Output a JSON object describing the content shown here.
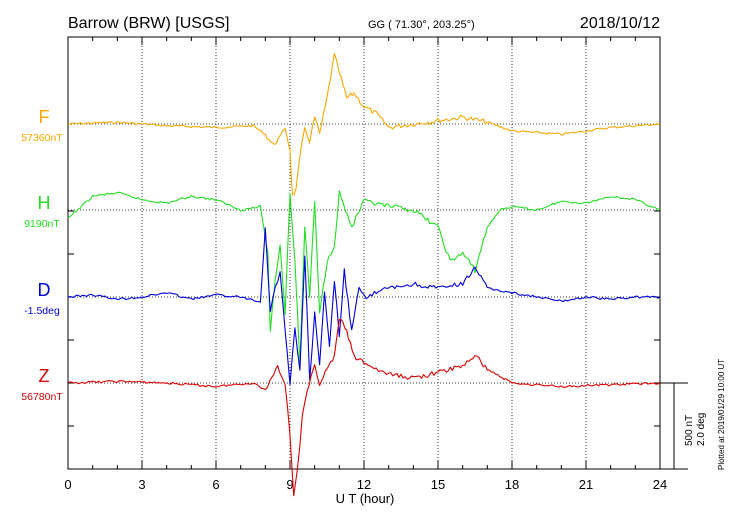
{
  "header": {
    "station": "Barrow (BRW)  [USGS]",
    "coords": "GG ( 71.30°, 203.25°)",
    "date": "2018/10/12"
  },
  "scale_note": {
    "nt": "500 nT",
    "deg": "2.0 deg"
  },
  "plotted_note": "Plotted at 2019/01/29 10:00 UT",
  "chart_data": {
    "type": "line",
    "title": "Barrow (BRW)  [USGS]",
    "xlabel": "U T (hour)",
    "xlim": [
      0,
      24
    ],
    "xticks": [
      "0",
      "3",
      "6",
      "9",
      "12",
      "15",
      "18",
      "21",
      "24"
    ],
    "grid": true,
    "scale_bar": {
      "nT": 500,
      "deg": 2.0
    },
    "series": [
      {
        "name": "F",
        "baseline_label": "57360nT",
        "color": "#f5a800",
        "units": "nT",
        "baseline": 57360,
        "x": [
          0,
          2,
          4,
          6,
          7.5,
          8.0,
          8.3,
          8.6,
          8.8,
          9.0,
          9.1,
          9.25,
          9.4,
          9.6,
          9.8,
          10.0,
          10.2,
          10.5,
          10.8,
          11.0,
          11.3,
          11.6,
          12.0,
          12.5,
          13.0,
          14.0,
          15.0,
          16.0,
          17.0,
          18.0,
          20.0,
          22.0,
          24.0
        ],
        "values": [
          0,
          10,
          -10,
          -20,
          -10,
          -60,
          -120,
          -80,
          -20,
          -150,
          -420,
          -380,
          -200,
          -20,
          -100,
          40,
          -60,
          150,
          400,
          300,
          150,
          180,
          100,
          60,
          -20,
          0,
          20,
          40,
          10,
          -40,
          -60,
          -20,
          0
        ]
      },
      {
        "name": "H",
        "baseline_label": "9190nT",
        "color": "#22dd22",
        "units": "nT",
        "baseline": 9190,
        "x": [
          0,
          1,
          2,
          3,
          4,
          5,
          6,
          7,
          7.8,
          8.1,
          8.2,
          8.4,
          8.6,
          8.8,
          9.0,
          9.2,
          9.4,
          9.6,
          9.8,
          10.0,
          10.2,
          10.5,
          10.8,
          11.0,
          11.5,
          12.0,
          13.0,
          14.0,
          15.0,
          15.5,
          16.0,
          16.5,
          17.0,
          17.5,
          18.0,
          19.0,
          20.0,
          21.0,
          22.0,
          23.0,
          24.0
        ],
        "values": [
          -50,
          80,
          100,
          60,
          40,
          80,
          60,
          0,
          20,
          -250,
          -700,
          -400,
          -200,
          -600,
          100,
          -300,
          -900,
          -100,
          -500,
          50,
          -600,
          -300,
          -200,
          100,
          -100,
          50,
          20,
          0,
          -100,
          -300,
          -250,
          -350,
          -100,
          0,
          20,
          0,
          50,
          40,
          80,
          60,
          0
        ]
      },
      {
        "name": "D",
        "baseline_label": "-1.5deg",
        "color": "#0000dd",
        "units": "deg",
        "baseline": -1.5,
        "x": [
          0,
          1,
          2,
          3,
          4,
          5,
          6,
          7,
          7.8,
          8.0,
          8.2,
          8.4,
          8.6,
          8.8,
          9.0,
          9.2,
          9.4,
          9.6,
          9.8,
          10.0,
          10.2,
          10.4,
          10.6,
          10.8,
          11.0,
          11.2,
          11.5,
          11.8,
          12.0,
          12.5,
          13.0,
          14.0,
          15.0,
          16.0,
          16.5,
          17.0,
          18.0,
          19.0,
          20.0,
          21.0,
          22.0,
          23.0,
          24.0
        ],
        "values": [
          0,
          0.05,
          -0.05,
          0,
          0.1,
          -0.05,
          0.05,
          0,
          -0.1,
          1.6,
          -0.3,
          0.2,
          0.6,
          -0.8,
          -2.0,
          -0.7,
          -1.7,
          0.9,
          -1.9,
          -0.4,
          -1.6,
          0.1,
          -1.2,
          0.4,
          -0.9,
          0.6,
          -0.8,
          0.2,
          0,
          0.1,
          0.2,
          0.3,
          0.2,
          0.3,
          0.7,
          0.2,
          0.1,
          0,
          -0.1,
          0,
          -0.05,
          0,
          0
        ]
      },
      {
        "name": "Z",
        "baseline_label": "56780nT",
        "color": "#dd0000",
        "units": "nT",
        "baseline": 56780,
        "x": [
          0,
          2,
          4,
          6,
          7.5,
          8.0,
          8.5,
          8.8,
          9.0,
          9.15,
          9.3,
          9.5,
          9.7,
          10.0,
          10.2,
          10.5,
          10.8,
          11.0,
          11.3,
          11.6,
          12.0,
          12.5,
          13.0,
          14.0,
          15.0,
          16.0,
          16.5,
          17.0,
          18.0,
          20.0,
          22.0,
          24.0
        ],
        "values": [
          0,
          10,
          0,
          -20,
          0,
          -40,
          100,
          0,
          -300,
          -650,
          -500,
          -200,
          -50,
          100,
          0,
          80,
          150,
          380,
          300,
          150,
          120,
          80,
          50,
          30,
          60,
          100,
          160,
          80,
          0,
          -20,
          -10,
          0
        ]
      }
    ]
  }
}
